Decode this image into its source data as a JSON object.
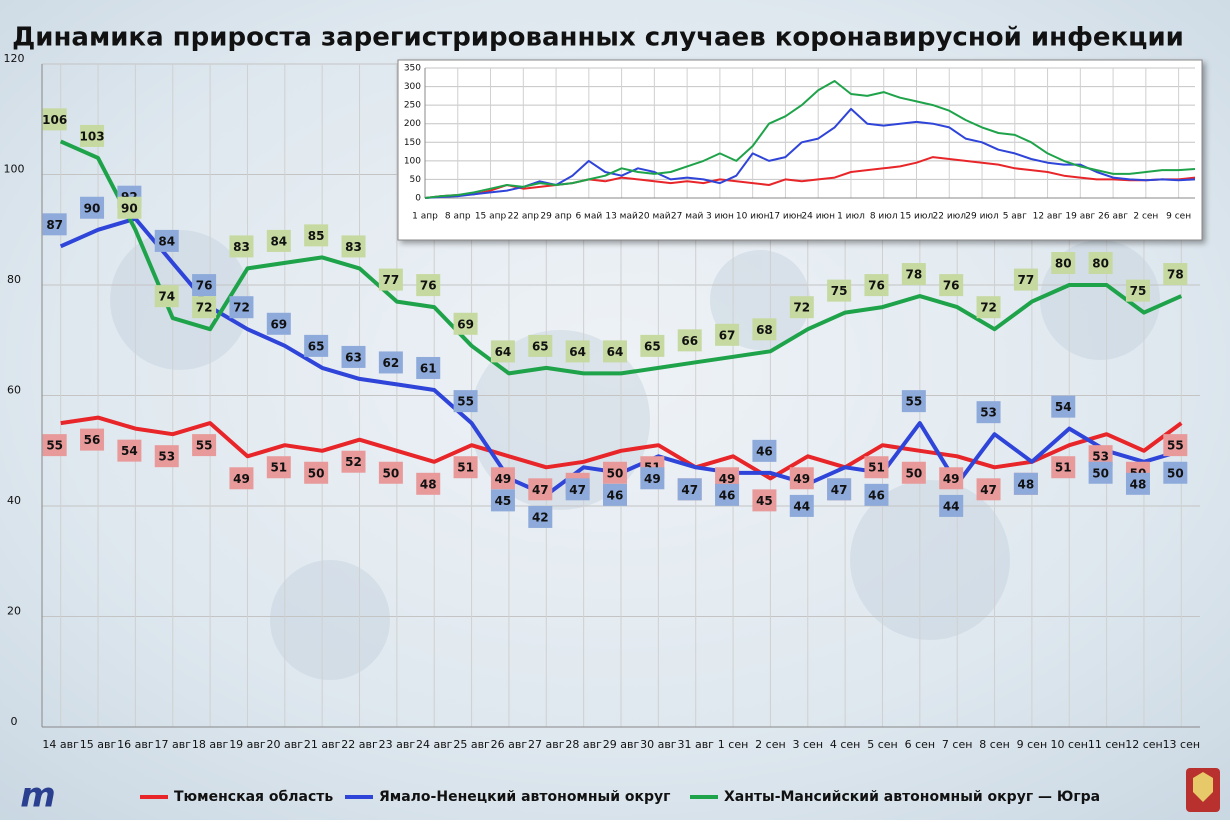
{
  "chart_data": [
    {
      "type": "line",
      "title": "Динамика прироста зарегистрированных случаев коронавирусной инфекции",
      "categories": [
        "14 авг",
        "15 авг",
        "16 авг",
        "17 авг",
        "18 авг",
        "19 авг",
        "20 авг",
        "21 авг",
        "22 авг",
        "23 авг",
        "24 авг",
        "25 авг",
        "26 авг",
        "27 авг",
        "28 авг",
        "29 авг",
        "30 авг",
        "31 авг",
        "1 сен",
        "2 сен",
        "3 сен",
        "4 сен",
        "5 сен",
        "6 сен",
        "7 сен",
        "8 сен",
        "9 сен",
        "10 сен",
        "11 сен",
        "12 сен",
        "13 сен"
      ],
      "series": [
        {
          "name": "Тюменская область",
          "color": "#e8262a",
          "label_color": "#e89a9a",
          "values": [
            55,
            56,
            54,
            53,
            55,
            49,
            51,
            50,
            52,
            50,
            48,
            51,
            49,
            47,
            48,
            50,
            51,
            47,
            49,
            45,
            49,
            47,
            51,
            50,
            49,
            47,
            48,
            51,
            53,
            50,
            55
          ]
        },
        {
          "name": "Ямало-Ненецкий автономный округ",
          "color": "#2f44d8",
          "label_color": "#8eaadb",
          "values": [
            87,
            90,
            92,
            84,
            76,
            72,
            69,
            65,
            63,
            62,
            61,
            55,
            45,
            42,
            47,
            46,
            49,
            47,
            46,
            46,
            44,
            47,
            46,
            55,
            44,
            53,
            48,
            54,
            50,
            48,
            50
          ]
        },
        {
          "name": "Ханты-Мансийский автономный округ — Югра",
          "color": "#1fa34a",
          "label_color": "#c6d9a0",
          "values": [
            106,
            103,
            90,
            74,
            72,
            83,
            84,
            85,
            83,
            77,
            76,
            69,
            64,
            65,
            64,
            64,
            65,
            66,
            67,
            68,
            72,
            75,
            76,
            78,
            76,
            72,
            77,
            80,
            80,
            75,
            78
          ]
        }
      ],
      "ylim": [
        0,
        120
      ],
      "yticks": [
        0,
        20,
        40,
        60,
        80,
        100,
        120
      ],
      "grid": true,
      "data_labels": true,
      "legend": "bottom"
    },
    {
      "type": "line",
      "categories": [
        "1 апр",
        null,
        "8 апр",
        null,
        "15 апр",
        null,
        "22 апр",
        null,
        "29 апр",
        null,
        "6 май",
        null,
        "13 май",
        null,
        "20 май",
        null,
        "27 май",
        null,
        "3 июн",
        null,
        "10 июн",
        null,
        "17 июн",
        null,
        "24 июн",
        null,
        "1 июл",
        null,
        "8 июл",
        null,
        "15 июл",
        null,
        "22 июл",
        null,
        "29 июл",
        null,
        "5 авг",
        null,
        "12 авг",
        null,
        "19 авг",
        null,
        "26 авг",
        null,
        "2 сен",
        null,
        "9 сен",
        null
      ],
      "series": [
        {
          "color": "#e8262a",
          "values": [
            0,
            5,
            8,
            10,
            20,
            35,
            25,
            30,
            35,
            40,
            50,
            45,
            55,
            50,
            45,
            40,
            45,
            40,
            50,
            45,
            40,
            35,
            50,
            45,
            50,
            55,
            70,
            75,
            80,
            85,
            95,
            110,
            105,
            100,
            95,
            90,
            80,
            75,
            70,
            60,
            55,
            50,
            50,
            48,
            48,
            50,
            50,
            55
          ]
        },
        {
          "color": "#2f44d8",
          "values": [
            0,
            3,
            5,
            10,
            15,
            20,
            30,
            45,
            35,
            60,
            100,
            70,
            60,
            80,
            70,
            50,
            55,
            50,
            40,
            60,
            120,
            100,
            110,
            150,
            160,
            190,
            240,
            200,
            195,
            200,
            205,
            200,
            190,
            160,
            150,
            130,
            120,
            105,
            95,
            90,
            90,
            70,
            55,
            50,
            48,
            50,
            48,
            50
          ]
        },
        {
          "color": "#1fa34a",
          "values": [
            0,
            5,
            8,
            15,
            25,
            35,
            30,
            40,
            35,
            40,
            50,
            60,
            80,
            70,
            65,
            70,
            85,
            100,
            120,
            100,
            140,
            200,
            220,
            250,
            290,
            315,
            280,
            275,
            285,
            270,
            260,
            250,
            235,
            210,
            190,
            175,
            170,
            150,
            120,
            100,
            85,
            75,
            65,
            65,
            70,
            75,
            75,
            78
          ]
        }
      ],
      "ylim": [
        0,
        350
      ],
      "yticks": [
        0,
        50,
        100,
        150,
        200,
        250,
        300,
        350
      ],
      "grid": true
    }
  ]
}
